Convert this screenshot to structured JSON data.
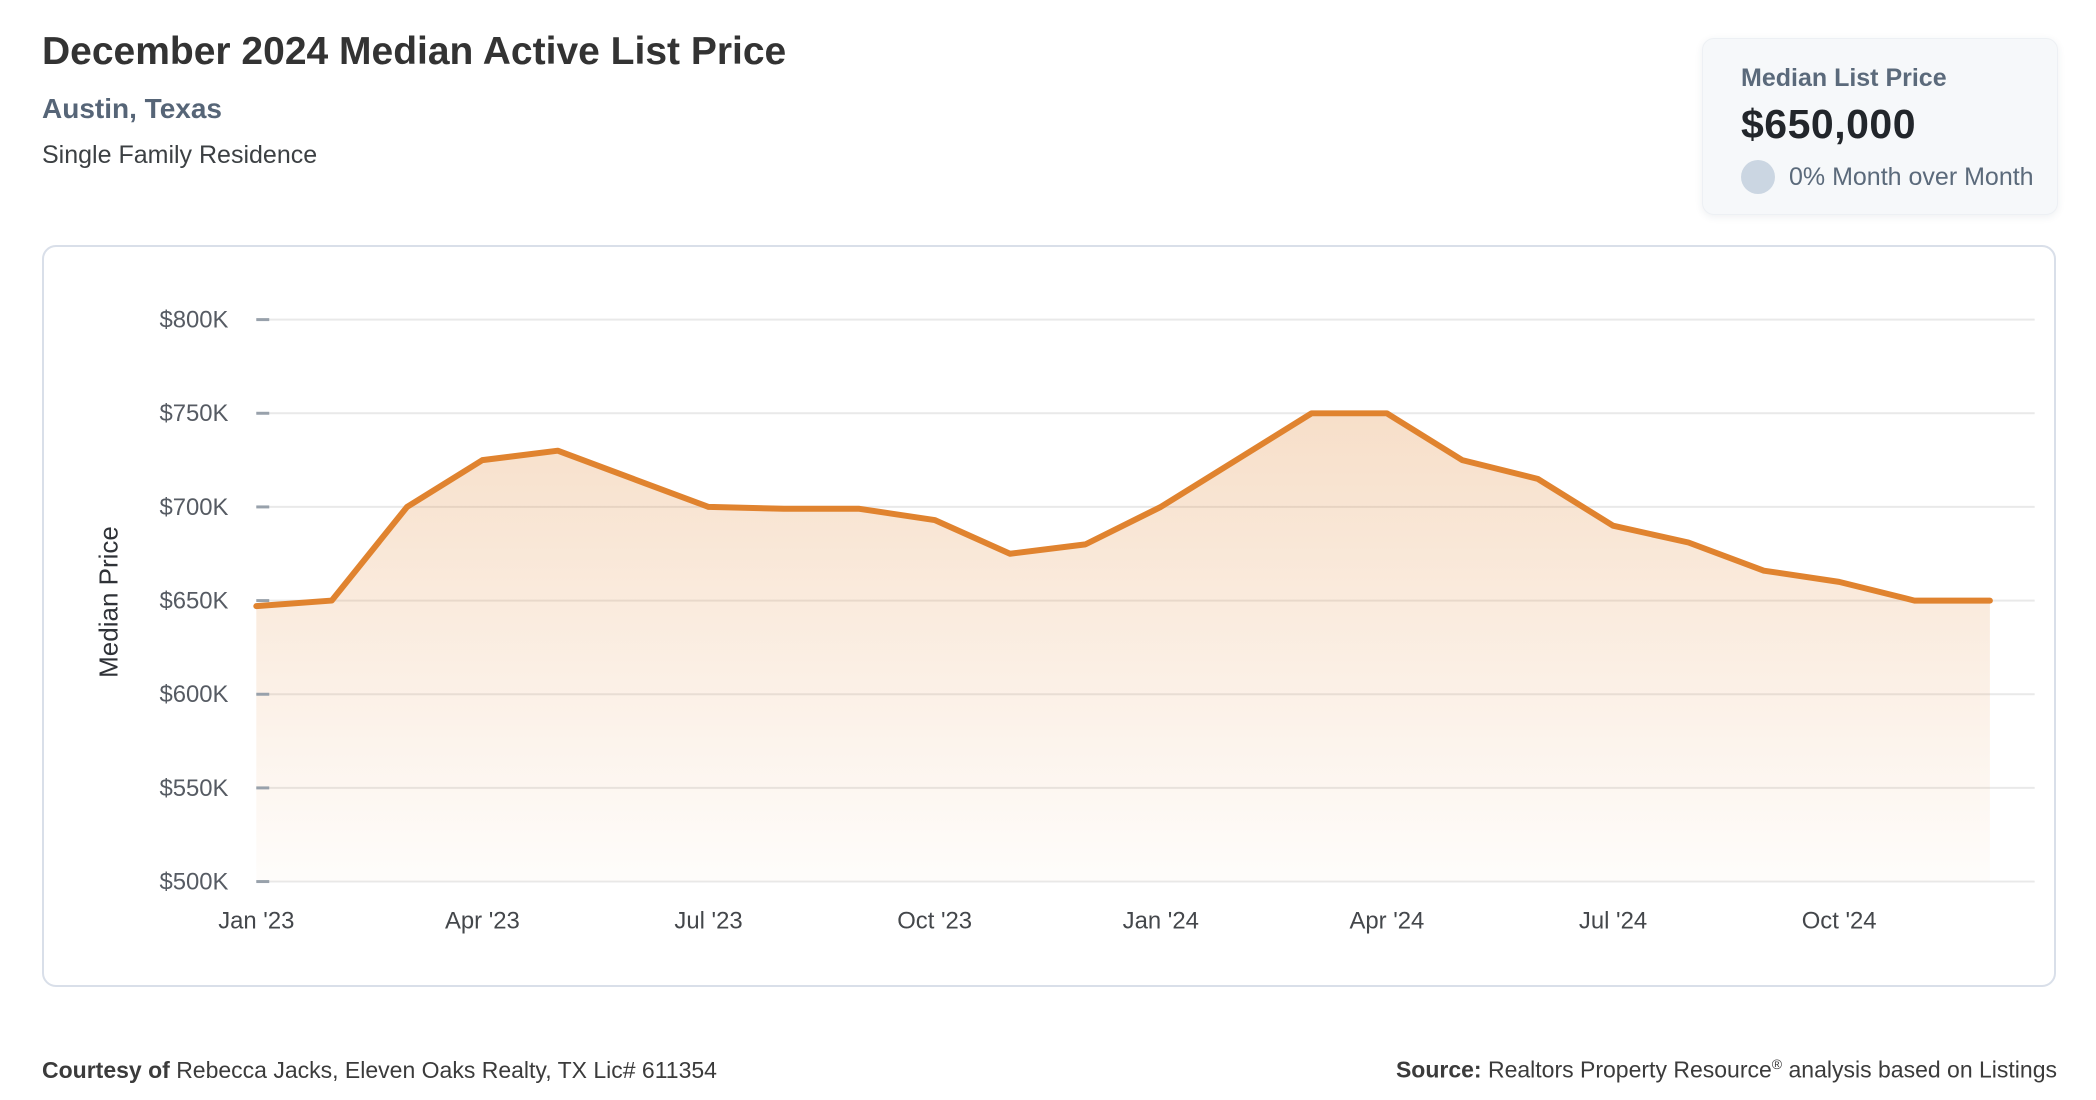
{
  "header": {
    "title": "December 2024 Median Active List Price",
    "subtitle": "Austin, Texas",
    "property_type": "Single Family Residence"
  },
  "stat_card": {
    "label": "Median List Price",
    "value": "$650,000",
    "mom_text": "0% Month over Month",
    "dot_color": "#cbd6e2"
  },
  "chart_data": {
    "type": "area",
    "title": "",
    "xlabel": "",
    "ylabel": "Median Price",
    "categories": [
      "Jan '23",
      "Feb '23",
      "Mar '23",
      "Apr '23",
      "May '23",
      "Jun '23",
      "Jul '23",
      "Aug '23",
      "Sep '23",
      "Oct '23",
      "Nov '23",
      "Dec '23",
      "Jan '24",
      "Feb '24",
      "Mar '24",
      "Apr '24",
      "May '24",
      "Jun '24",
      "Jul '24",
      "Aug '24",
      "Sep '24",
      "Oct '24",
      "Nov '24",
      "Dec '24"
    ],
    "values": [
      647,
      650,
      700,
      725,
      730,
      715,
      700,
      699,
      699,
      693,
      675,
      680,
      700,
      725,
      750,
      750,
      725,
      715,
      690,
      681,
      666,
      660,
      650,
      650
    ],
    "values_unit": "K USD",
    "x_tick_every": 3,
    "x_tick_labels": [
      "Jan '23",
      "Apr '23",
      "Jul '23",
      "Oct '23",
      "Jan '24",
      "Apr '24",
      "Jul '24",
      "Oct '24"
    ],
    "y_ticks": [
      500,
      550,
      600,
      650,
      700,
      750,
      800
    ],
    "y_tick_prefix": "$",
    "y_tick_suffix": "K",
    "ylim": [
      500,
      830
    ],
    "grid": true,
    "legend": false,
    "line_color": "#e0832f",
    "fill_color": "#e0832f",
    "fill_opacity_top": 0.26,
    "fill_opacity_bottom": 0.02,
    "grid_color": "#e9e9e9",
    "tick_color": "#98a1ab"
  },
  "footer": {
    "courtesy_label": "Courtesy of",
    "courtesy_text": "Rebecca Jacks, Eleven Oaks Realty, TX Lic# 611354",
    "source_label": "Source:",
    "source_text_1": "Realtors Property Resource",
    "source_sup": "®",
    "source_text_2": "analysis based on Listings"
  }
}
